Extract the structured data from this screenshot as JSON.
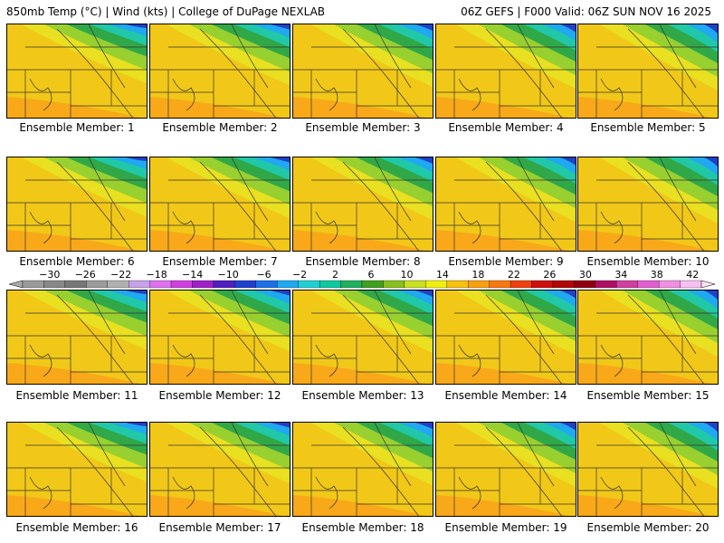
{
  "header": {
    "left": "850mb Temp (°C) | Wind (kts) | College of DuPage NEXLAB",
    "right": "06Z GEFS | F000 Valid: 06Z SUN NOV 16 2025"
  },
  "members": [
    "Ensemble Member: 1",
    "Ensemble Member: 2",
    "Ensemble Member: 3",
    "Ensemble Member: 4",
    "Ensemble Member: 5",
    "Ensemble Member: 6",
    "Ensemble Member: 7",
    "Ensemble Member: 8",
    "Ensemble Member: 9",
    "Ensemble Member: 10",
    "Ensemble Member: 11",
    "Ensemble Member: 12",
    "Ensemble Member: 13",
    "Ensemble Member: 14",
    "Ensemble Member: 15",
    "Ensemble Member: 16",
    "Ensemble Member: 17",
    "Ensemble Member: 18",
    "Ensemble Member: 19",
    "Ensemble Member: 20"
  ],
  "colorbar": {
    "labels": [
      "−30",
      "−26",
      "−22",
      "−18",
      "−14",
      "−10",
      "−6",
      "−2",
      "2",
      "6",
      "10",
      "14",
      "18",
      "22",
      "26",
      "30",
      "34",
      "38",
      "42"
    ],
    "colors": [
      "#9a9a9a",
      "#888888",
      "#777777",
      "#9b9b9b",
      "#b0b0b0",
      "#c8a2e8",
      "#e070f0",
      "#d040e0",
      "#a020c8",
      "#5020c0",
      "#2040d0",
      "#1e70e8",
      "#20a8f0",
      "#20d0d0",
      "#10c8a0",
      "#20b060",
      "#40a020",
      "#88c020",
      "#c8e020",
      "#f0f010",
      "#f8c010",
      "#f8a010",
      "#f87810",
      "#f04010",
      "#d01010",
      "#b00808",
      "#900010",
      "#b01060",
      "#d040a0",
      "#e060d0",
      "#f090e0",
      "#f8c0f0"
    ]
  }
}
